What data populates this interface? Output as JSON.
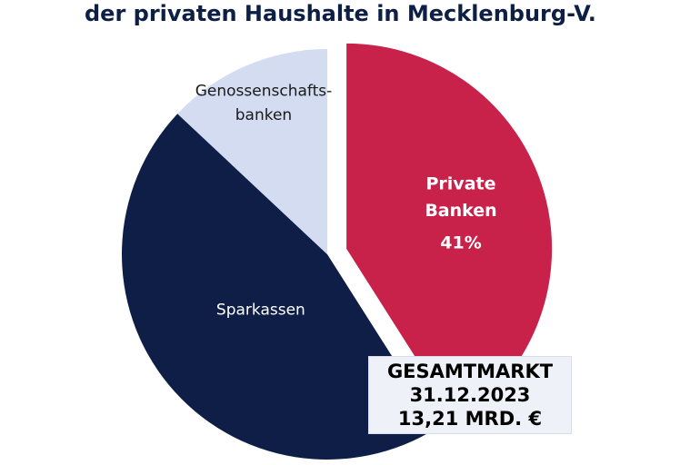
{
  "title": "der privaten Haushalte in Mecklenburg-V.",
  "colors": {
    "title": "#0d1f45",
    "private_banken": "#c8224a",
    "sparkassen": "#0e1e47",
    "genossenschaftsbanken": "#d3dcf1"
  },
  "chart_data": {
    "type": "pie",
    "title": "der privaten Haushalte in Mecklenburg-V.",
    "legend": "none",
    "slices": [
      {
        "label_lines": [
          "Private",
          "Banken"
        ],
        "value": 41,
        "value_label": "41%",
        "color": "#c8224a",
        "exploded": true
      },
      {
        "label_lines": [
          "Sparkassen"
        ],
        "value": 46,
        "value_label": "",
        "color": "#0e1e47",
        "exploded": false
      },
      {
        "label_lines": [
          "Genossenschafts-",
          "banken"
        ],
        "value": 13,
        "value_label": "",
        "color": "#d3dcf1",
        "exploded": false
      }
    ]
  },
  "summary_box": {
    "line1": "GESAMTMARKT",
    "line2": "31.12.2023",
    "line3": "13,21 MRD. €"
  }
}
